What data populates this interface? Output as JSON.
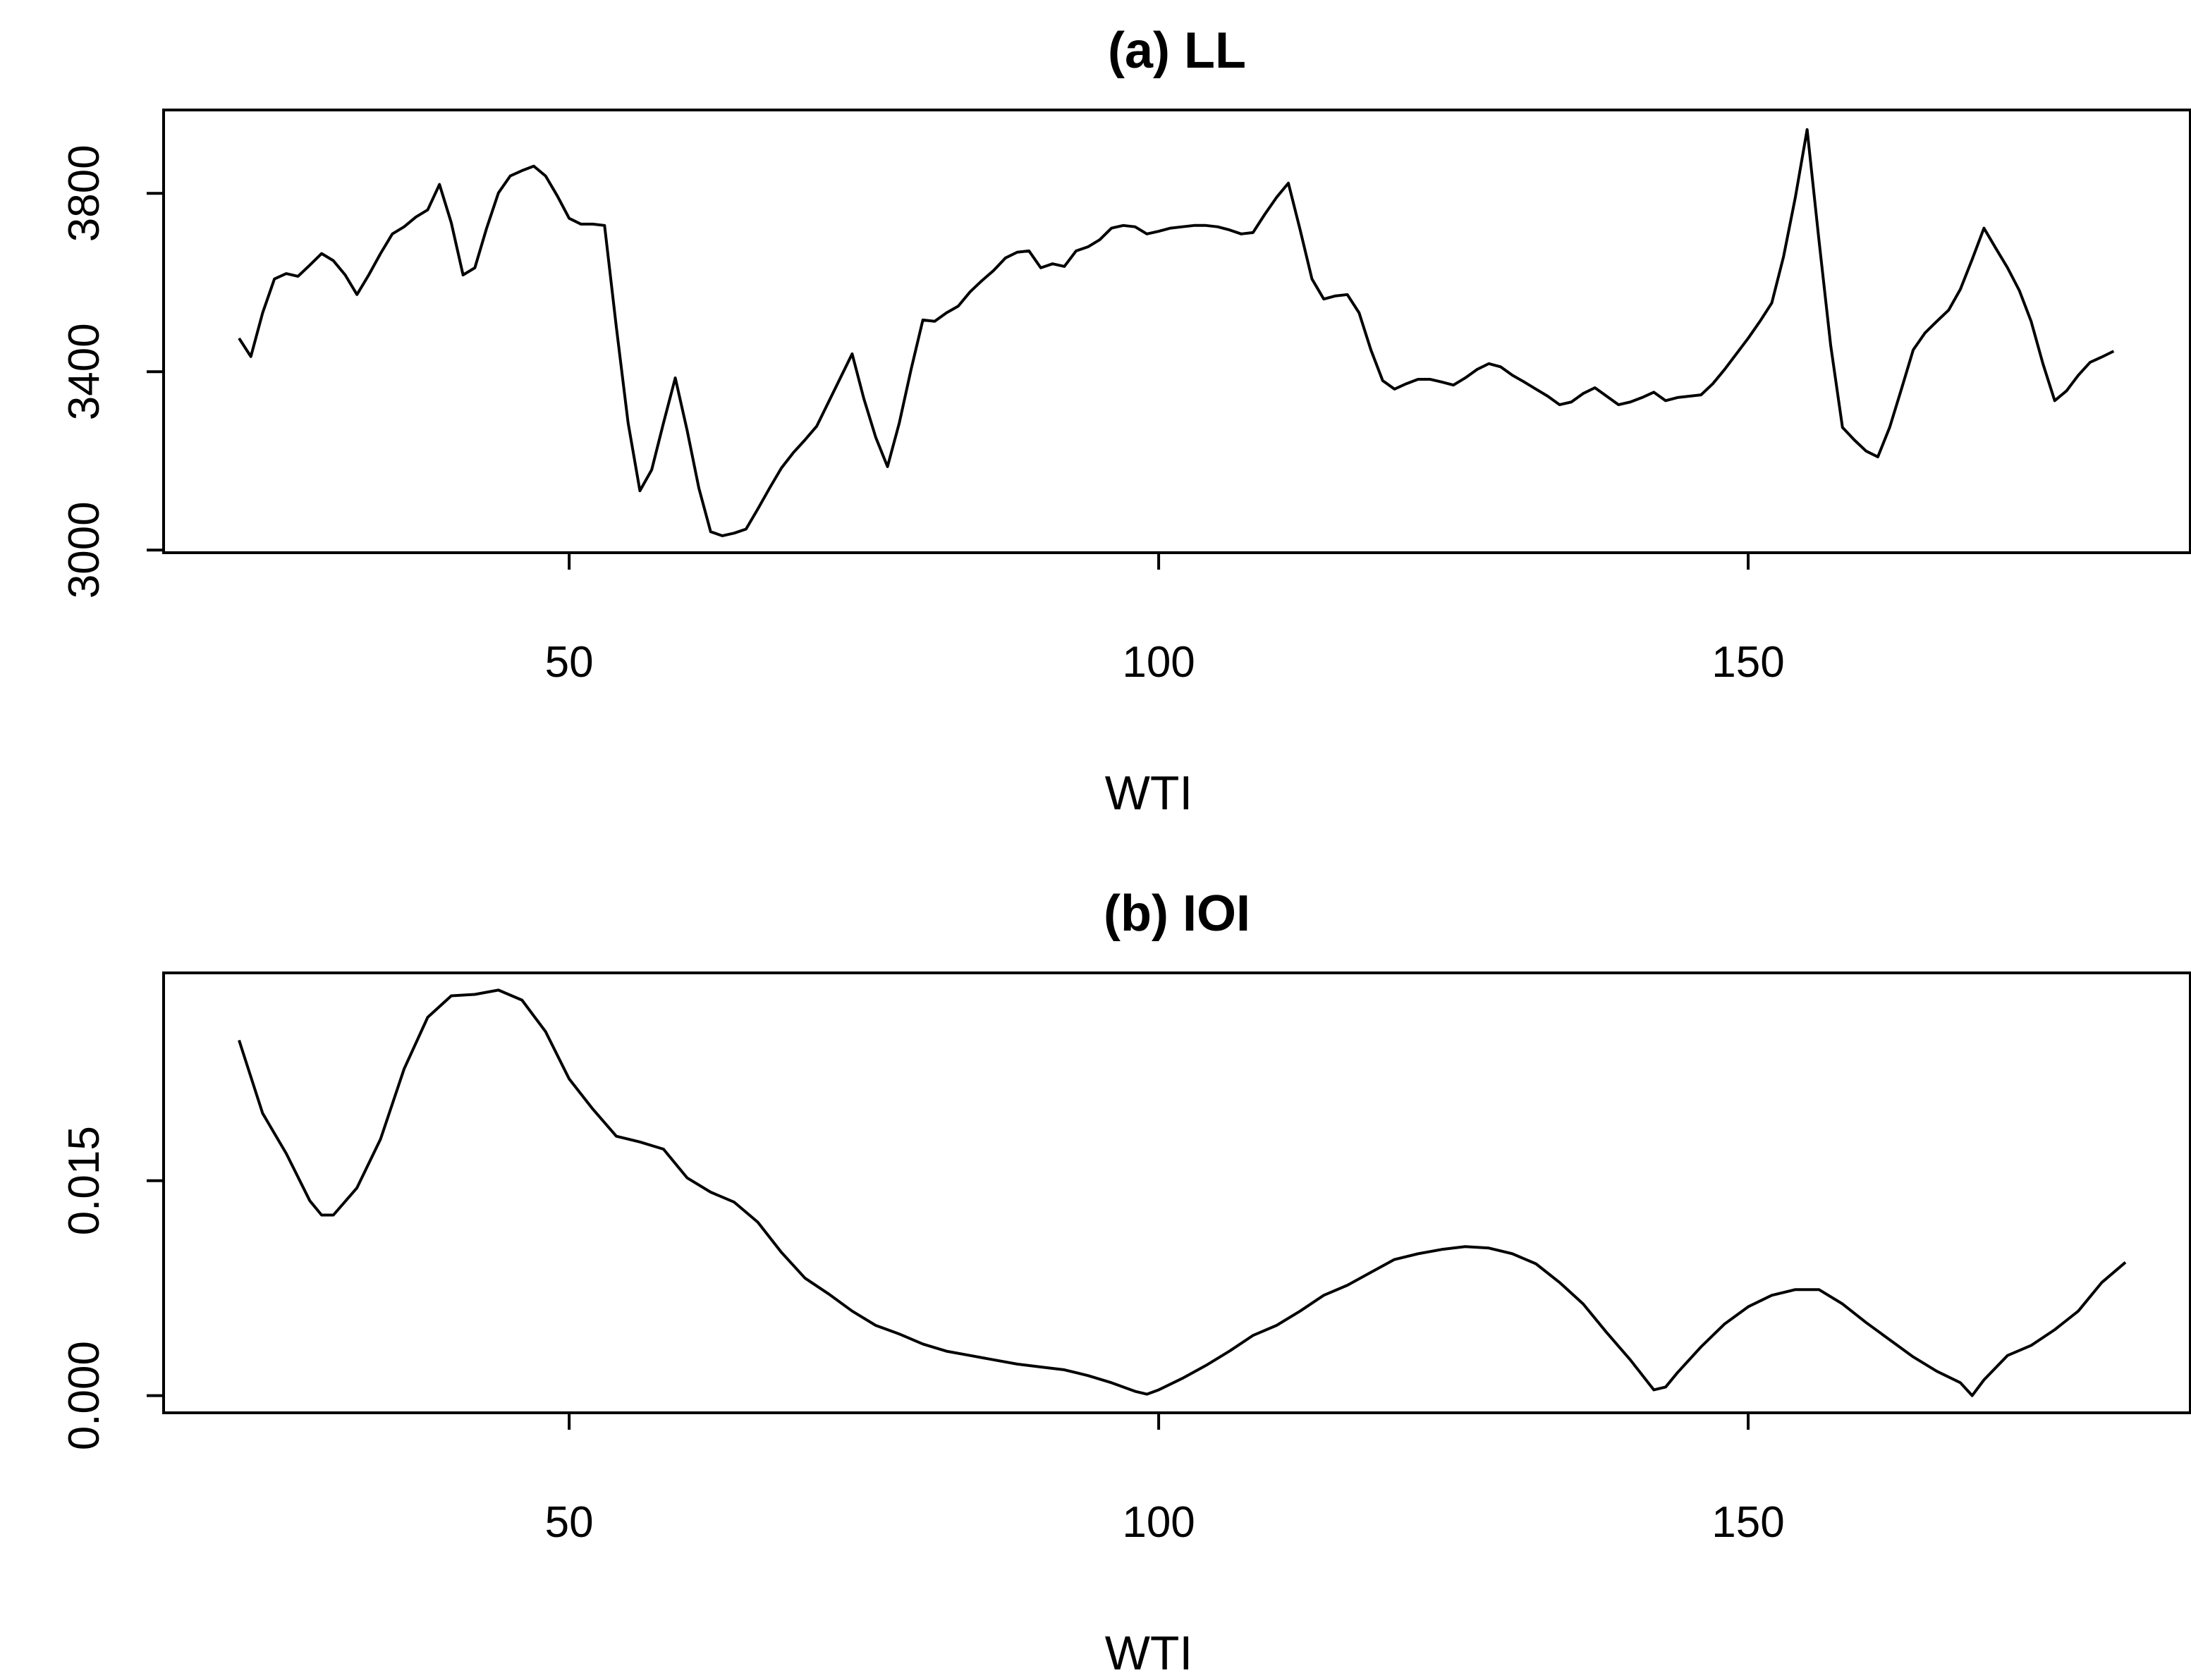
{
  "chart_data": [
    {
      "type": "line",
      "title": "(a) LL",
      "xlabel": "WTI",
      "color": "#000000",
      "xlim": [
        15.6,
        187.5
      ],
      "ylim": [
        2994,
        3987
      ],
      "xticks": [
        50,
        100,
        150
      ],
      "yticks": [
        3000,
        3400,
        3800
      ],
      "x": [
        22,
        23,
        24,
        25,
        26,
        27,
        28,
        29,
        30,
        31,
        32,
        33,
        34,
        35,
        36,
        37,
        38,
        39,
        40,
        41,
        42,
        43,
        44,
        45,
        46,
        47,
        48,
        49,
        50,
        51,
        52,
        53,
        54,
        55,
        56,
        57,
        58,
        59,
        60,
        61,
        62,
        63,
        64,
        65,
        66,
        67,
        68,
        69,
        70,
        71,
        72,
        73,
        74,
        75,
        76,
        77,
        78,
        79,
        80,
        81,
        82,
        83,
        84,
        85,
        86,
        87,
        88,
        89,
        90,
        91,
        92,
        93,
        94,
        95,
        96,
        97,
        98,
        99,
        100,
        101,
        102,
        103,
        104,
        105,
        106,
        107,
        108,
        109,
        110,
        111,
        112,
        113,
        114,
        115,
        116,
        117,
        118,
        119,
        120,
        121,
        122,
        123,
        124,
        125,
        126,
        127,
        128,
        129,
        130,
        131,
        132,
        133,
        134,
        135,
        136,
        137,
        138,
        139,
        140,
        141,
        142,
        143,
        144,
        145,
        146,
        147,
        148,
        149,
        150,
        151,
        152,
        153,
        154,
        155,
        156,
        157,
        158,
        159,
        160,
        161,
        162,
        163,
        164,
        165,
        166,
        167,
        168,
        169,
        170,
        171,
        172,
        173,
        174,
        175,
        176,
        177,
        178,
        179,
        180,
        181
      ],
      "values": [
        3475,
        3434,
        3532,
        3608,
        3620,
        3614,
        3639,
        3665,
        3649,
        3617,
        3573,
        3617,
        3665,
        3709,
        3725,
        3747,
        3763,
        3820,
        3734,
        3617,
        3633,
        3722,
        3801,
        3839,
        3851,
        3861,
        3839,
        3794,
        3744,
        3731,
        3731,
        3728,
        3500,
        3285,
        3133,
        3180,
        3285,
        3386,
        3269,
        3139,
        3041,
        3032,
        3038,
        3047,
        3092,
        3139,
        3184,
        3218,
        3247,
        3278,
        3332,
        3386,
        3440,
        3339,
        3253,
        3187,
        3285,
        3405,
        3516,
        3513,
        3532,
        3547,
        3579,
        3604,
        3627,
        3655,
        3668,
        3671,
        3633,
        3642,
        3636,
        3671,
        3680,
        3696,
        3722,
        3728,
        3725,
        3709,
        3715,
        3722,
        3725,
        3728,
        3728,
        3725,
        3718,
        3709,
        3712,
        3753,
        3791,
        3823,
        3718,
        3608,
        3563,
        3570,
        3573,
        3532,
        3449,
        3380,
        3361,
        3373,
        3383,
        3383,
        3377,
        3370,
        3386,
        3405,
        3418,
        3411,
        3392,
        3377,
        3361,
        3345,
        3326,
        3332,
        3351,
        3364,
        3345,
        3326,
        3332,
        3342,
        3354,
        3335,
        3342,
        3345,
        3348,
        3373,
        3405,
        3440,
        3475,
        3513,
        3554,
        3658,
        3791,
        3943,
        3696,
        3459,
        3275,
        3247,
        3222,
        3209,
        3275,
        3361,
        3449,
        3487,
        3513,
        3538,
        3585,
        3652,
        3722,
        3677,
        3633,
        3582,
        3513,
        3418,
        3335,
        3357,
        3392,
        3421,
        3433,
        3446
      ]
    },
    {
      "type": "line",
      "title": "(b) IOI",
      "xlabel": "WTI",
      "color": "#000000",
      "xlim": [
        15.6,
        187.5
      ],
      "ylim": [
        -0.0012,
        0.0295
      ],
      "xticks": [
        50,
        100,
        150
      ],
      "yticks": [
        {
          "value": 0,
          "label": "0.000"
        },
        {
          "value": 0.015,
          "label": "0.015"
        }
      ],
      "x": [
        22,
        24,
        26,
        28,
        29,
        30,
        32,
        34,
        36,
        38,
        40,
        42,
        44,
        46,
        48,
        50,
        52,
        54,
        56,
        58,
        60,
        62,
        64,
        66,
        68,
        70,
        72,
        74,
        76,
        78,
        80,
        82,
        84,
        86,
        88,
        90,
        92,
        94,
        96,
        98,
        99,
        100,
        102,
        104,
        106,
        108,
        110,
        112,
        114,
        116,
        118,
        120,
        122,
        124,
        126,
        128,
        130,
        132,
        134,
        136,
        138,
        140,
        142,
        143,
        144,
        146,
        148,
        150,
        152,
        154,
        156,
        158,
        160,
        162,
        164,
        166,
        168,
        169,
        170,
        172,
        174,
        176,
        178,
        180,
        182
      ],
      "values": [
        0.0248,
        0.0197,
        0.0169,
        0.0136,
        0.0126,
        0.0126,
        0.0145,
        0.0179,
        0.0228,
        0.0264,
        0.0279,
        0.028,
        0.0283,
        0.0276,
        0.0254,
        0.0221,
        0.02,
        0.0181,
        0.0177,
        0.0172,
        0.0152,
        0.0142,
        0.0135,
        0.0121,
        0.01,
        0.0082,
        0.0071,
        0.0059,
        0.0049,
        0.0043,
        0.0036,
        0.0031,
        0.0028,
        0.0025,
        0.0022,
        0.002,
        0.0018,
        0.0014,
        0.0009,
        0.0003,
        0.0001,
        0.0004,
        0.0012,
        0.0021,
        0.0031,
        0.0042,
        0.0049,
        0.0059,
        0.007,
        0.0077,
        0.0086,
        0.0095,
        0.0099,
        0.0102,
        0.0104,
        0.0103,
        0.0099,
        0.0092,
        0.0079,
        0.0064,
        0.0044,
        0.0025,
        0.0004,
        0.0006,
        0.0016,
        0.0034,
        0.005,
        0.0062,
        0.007,
        0.0074,
        0.0074,
        0.0064,
        0.0051,
        0.0039,
        0.0027,
        0.0017,
        0.0009,
        0,
        0.0011,
        0.0028,
        0.0035,
        0.0046,
        0.0059,
        0.0079,
        0.0093
      ]
    }
  ]
}
